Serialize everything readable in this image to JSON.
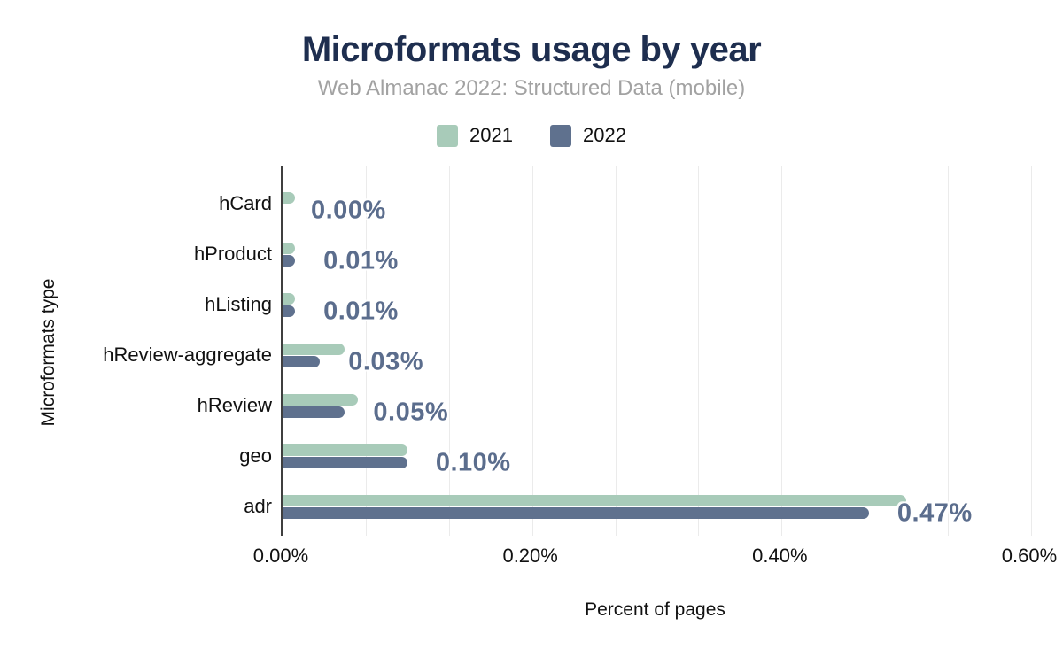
{
  "header": {
    "title": "Microformats usage by year",
    "subtitle": "Web Almanac 2022: Structured Data (mobile)"
  },
  "chart_data": {
    "type": "bar",
    "orientation": "horizontal",
    "title": "Microformats usage by year",
    "subtitle": "Web Almanac 2022: Structured Data (mobile)",
    "categories": [
      "hCard",
      "hProduct",
      "hListing",
      "hReview-aggregate",
      "hReview",
      "geo",
      "adr"
    ],
    "series": [
      {
        "name": "2021",
        "color": "#a8cbb9",
        "values": [
          0.01,
          0.01,
          0.01,
          0.05,
          0.06,
          0.1,
          0.5
        ]
      },
      {
        "name": "2022",
        "color": "#5f718e",
        "values": [
          0.0,
          0.01,
          0.01,
          0.03,
          0.05,
          0.1,
          0.47
        ]
      }
    ],
    "bar_labels": [
      "0.00%",
      "0.01%",
      "0.01%",
      "0.03%",
      "0.05%",
      "0.10%",
      "0.47%"
    ],
    "bar_labels_series": "2022",
    "xlabel": "Percent of pages",
    "ylabel": "Microformats type",
    "xlim": [
      0,
      0.6
    ],
    "x_ticks": [
      "0.00%",
      "0.20%",
      "0.40%",
      "0.60%"
    ],
    "grid_divisions": 9,
    "grid": "vertical",
    "legend_position": "top"
  },
  "colors": {
    "title": "#1e2e4f",
    "subtitle": "#a2a2a2",
    "annotation": "#5b6d8d",
    "axis_line": "#3f3f3f",
    "gridline": "#ebebeb",
    "series_2021": "#a8cbb9",
    "series_2022": "#5f718e"
  }
}
